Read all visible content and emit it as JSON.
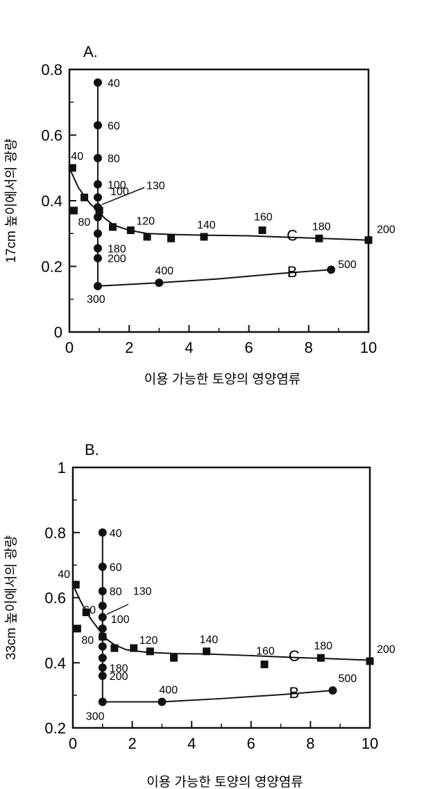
{
  "chart_data": [
    {
      "type": "scatter",
      "panel_label": "A.",
      "xlabel": "이용 가능한 토양의 영양염류",
      "ylabel": "17cm 높이에서의 광량",
      "xlim": [
        0,
        10
      ],
      "ylim": [
        0,
        0.8
      ],
      "xticks": [
        "0",
        "2",
        "4",
        "6",
        "8",
        "10"
      ],
      "yticks": [
        "0",
        "0.2",
        "0.4",
        "0.6",
        "0.8"
      ],
      "series": [
        {
          "name": "C",
          "marker": "square",
          "points": [
            {
              "x": 0.1,
              "y": 0.5,
              "label": "40"
            },
            {
              "x": 0.5,
              "y": 0.41,
              "label": ""
            },
            {
              "x": 0.15,
              "y": 0.37,
              "label": "80"
            },
            {
              "x": 1.0,
              "y": 0.37,
              "label": "100"
            },
            {
              "x": 1.45,
              "y": 0.32,
              "label": ""
            },
            {
              "x": 2.05,
              "y": 0.31,
              "label": "120"
            },
            {
              "x": 2.6,
              "y": 0.29,
              "label": ""
            },
            {
              "x": 3.4,
              "y": 0.285,
              "label": ""
            },
            {
              "x": 4.5,
              "y": 0.29,
              "label": "140"
            },
            {
              "x": 6.45,
              "y": 0.31,
              "label": "160"
            },
            {
              "x": 8.35,
              "y": 0.285,
              "label": "180"
            },
            {
              "x": 10.0,
              "y": 0.28,
              "label": "200"
            }
          ],
          "curve": [
            [
              0.0,
              0.5
            ],
            [
              0.15,
              0.47
            ],
            [
              0.3,
              0.44
            ],
            [
              0.5,
              0.415
            ],
            [
              0.7,
              0.39
            ],
            [
              0.95,
              0.37
            ],
            [
              1.2,
              0.345
            ],
            [
              1.5,
              0.325
            ],
            [
              2.0,
              0.31
            ],
            [
              2.6,
              0.3
            ],
            [
              3.5,
              0.297
            ],
            [
              4.5,
              0.295
            ],
            [
              6.0,
              0.293
            ],
            [
              7.5,
              0.288
            ],
            [
              8.5,
              0.285
            ],
            [
              10.0,
              0.28
            ]
          ]
        },
        {
          "name": "B",
          "marker": "circle",
          "points": [
            {
              "x": 0.95,
              "y": 0.76,
              "label": "40"
            },
            {
              "x": 0.95,
              "y": 0.63,
              "label": "60"
            },
            {
              "x": 0.95,
              "y": 0.53,
              "label": "80"
            },
            {
              "x": 0.95,
              "y": 0.45,
              "label": "100"
            },
            {
              "x": 0.95,
              "y": 0.41,
              "label": ""
            },
            {
              "x": 0.95,
              "y": 0.38,
              "label": "130"
            },
            {
              "x": 0.95,
              "y": 0.35,
              "label": ""
            },
            {
              "x": 0.95,
              "y": 0.3,
              "label": ""
            },
            {
              "x": 0.95,
              "y": 0.255,
              "label": "180"
            },
            {
              "x": 0.95,
              "y": 0.225,
              "label": "200"
            },
            {
              "x": 0.95,
              "y": 0.14,
              "label": "300"
            },
            {
              "x": 3.0,
              "y": 0.15,
              "label": "400"
            },
            {
              "x": 8.75,
              "y": 0.19,
              "label": "500"
            }
          ],
          "vline": {
            "x": 0.95,
            "y_from": 0.14,
            "y_to": 0.76
          },
          "curve": [
            [
              0.95,
              0.14
            ],
            [
              3.0,
              0.15
            ],
            [
              5.0,
              0.162
            ],
            [
              7.0,
              0.178
            ],
            [
              8.75,
              0.19
            ]
          ]
        }
      ]
    },
    {
      "type": "scatter",
      "panel_label": "B.",
      "xlabel": "이용 가능한 토양의 영양염류",
      "ylabel": "33cm 높이에서의 광량",
      "xlim": [
        0,
        10
      ],
      "ylim": [
        0.2,
        1
      ],
      "xticks": [
        "0",
        "2",
        "4",
        "6",
        "8",
        "10"
      ],
      "yticks": [
        "0.2",
        "0.4",
        "0.6",
        "0.8",
        "1"
      ],
      "series": [
        {
          "name": "C",
          "marker": "square",
          "points": [
            {
              "x": 0.1,
              "y": 0.64,
              "label": "40"
            },
            {
              "x": 0.45,
              "y": 0.555,
              "label": "60"
            },
            {
              "x": 0.15,
              "y": 0.505,
              "label": "80"
            },
            {
              "x": 1.0,
              "y": 0.48,
              "label": "100"
            },
            {
              "x": 1.4,
              "y": 0.445,
              "label": ""
            },
            {
              "x": 2.05,
              "y": 0.445,
              "label": "120"
            },
            {
              "x": 2.6,
              "y": 0.435,
              "label": ""
            },
            {
              "x": 3.4,
              "y": 0.415,
              "label": ""
            },
            {
              "x": 4.5,
              "y": 0.435,
              "label": "140"
            },
            {
              "x": 6.45,
              "y": 0.395,
              "label": "160"
            },
            {
              "x": 8.35,
              "y": 0.415,
              "label": "180"
            },
            {
              "x": 10.0,
              "y": 0.405,
              "label": "200"
            }
          ],
          "curve": [
            [
              0.0,
              0.64
            ],
            [
              0.2,
              0.6
            ],
            [
              0.4,
              0.565
            ],
            [
              0.6,
              0.535
            ],
            [
              0.85,
              0.505
            ],
            [
              1.1,
              0.475
            ],
            [
              1.4,
              0.455
            ],
            [
              1.8,
              0.44
            ],
            [
              2.5,
              0.432
            ],
            [
              3.5,
              0.428
            ],
            [
              4.5,
              0.427
            ],
            [
              6.0,
              0.422
            ],
            [
              7.5,
              0.416
            ],
            [
              8.5,
              0.413
            ],
            [
              10.0,
              0.408
            ]
          ]
        },
        {
          "name": "B",
          "marker": "circle",
          "points": [
            {
              "x": 1.0,
              "y": 0.8,
              "label": "40"
            },
            {
              "x": 1.0,
              "y": 0.695,
              "label": "60"
            },
            {
              "x": 1.0,
              "y": 0.62,
              "label": "80"
            },
            {
              "x": 1.0,
              "y": 0.575,
              "label": ""
            },
            {
              "x": 1.0,
              "y": 0.54,
              "label": "130"
            },
            {
              "x": 1.0,
              "y": 0.505,
              "label": ""
            },
            {
              "x": 1.0,
              "y": 0.48,
              "label": ""
            },
            {
              "x": 1.0,
              "y": 0.45,
              "label": ""
            },
            {
              "x": 1.0,
              "y": 0.415,
              "label": ""
            },
            {
              "x": 1.0,
              "y": 0.385,
              "label": "180"
            },
            {
              "x": 1.0,
              "y": 0.36,
              "label": "200"
            },
            {
              "x": 1.0,
              "y": 0.28,
              "label": "300"
            },
            {
              "x": 3.0,
              "y": 0.28,
              "label": "400"
            },
            {
              "x": 8.75,
              "y": 0.315,
              "label": "500"
            }
          ],
          "vline": {
            "x": 1.0,
            "y_from": 0.28,
            "y_to": 0.8
          },
          "curve": [
            [
              1.0,
              0.28
            ],
            [
              3.0,
              0.28
            ],
            [
              5.0,
              0.29
            ],
            [
              7.0,
              0.302
            ],
            [
              8.75,
              0.315
            ]
          ]
        }
      ]
    }
  ]
}
